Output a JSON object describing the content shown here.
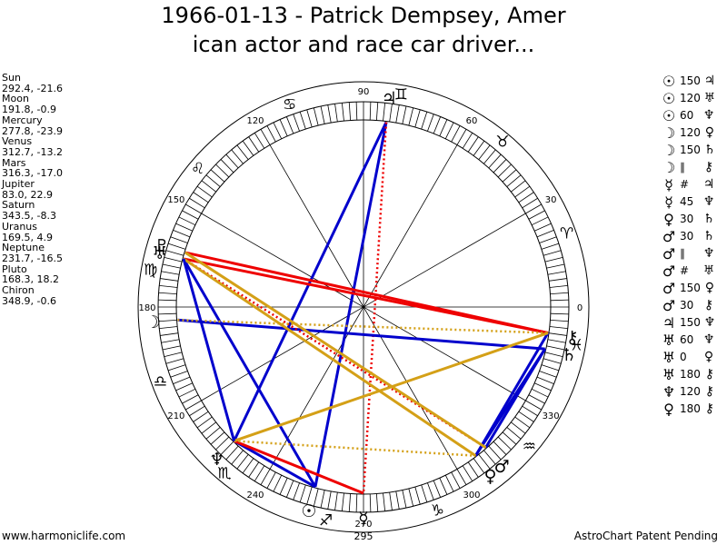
{
  "title_line1": "1966-01-13 - Patrick Dempsey, Amer",
  "title_line2": "ican actor and race car driver...",
  "positions": [
    {
      "name": "Sun",
      "value": "292.4, -21.6"
    },
    {
      "name": "Moon",
      "value": "191.8, -0.9"
    },
    {
      "name": "Mercury",
      "value": "277.8, -23.9"
    },
    {
      "name": "Venus",
      "value": "312.7, -13.2"
    },
    {
      "name": "Mars",
      "value": "316.3, -17.0"
    },
    {
      "name": "Jupiter",
      "value": "83.0, 22.9"
    },
    {
      "name": "Saturn",
      "value": "343.5, -8.3"
    },
    {
      "name": "Uranus",
      "value": "169.5, 4.9"
    },
    {
      "name": "Neptune",
      "value": "231.7, -16.5"
    },
    {
      "name": "Pluto",
      "value": "168.3, 18.2"
    },
    {
      "name": "Chiron",
      "value": "348.9, -0.6"
    }
  ],
  "aspects": [
    {
      "p1": "☉",
      "value": "150",
      "p2": "♃"
    },
    {
      "p1": "☉",
      "value": "120",
      "p2": "♅"
    },
    {
      "p1": "☉",
      "value": "60",
      "p2": "♆"
    },
    {
      "p1": "☽",
      "value": "120",
      "p2": "♀"
    },
    {
      "p1": "☽",
      "value": "150",
      "p2": "♄"
    },
    {
      "p1": "☽",
      "value": "∥",
      "p2": "⚷"
    },
    {
      "p1": "☿",
      "value": "#",
      "p2": "♃"
    },
    {
      "p1": "☿",
      "value": "45",
      "p2": "♆"
    },
    {
      "p1": "♀",
      "value": "30",
      "p2": "♄"
    },
    {
      "p1": "♂",
      "value": "30",
      "p2": "♄"
    },
    {
      "p1": "♂",
      "value": "∥",
      "p2": "♆"
    },
    {
      "p1": "♂",
      "value": "#",
      "p2": "♅"
    },
    {
      "p1": "♂",
      "value": "150",
      "p2": "♀"
    },
    {
      "p1": "♂",
      "value": "30",
      "p2": "⚷"
    },
    {
      "p1": "♃",
      "value": "150",
      "p2": "♆"
    },
    {
      "p1": "♅",
      "value": "60",
      "p2": "♆"
    },
    {
      "p1": "♅",
      "value": "0",
      "p2": "♀"
    },
    {
      "p1": "♅",
      "value": "180",
      "p2": "⚷"
    },
    {
      "p1": "♆",
      "value": "120",
      "p2": "⚷"
    },
    {
      "p1": "♀",
      "value": "180",
      "p2": "⚷"
    }
  ],
  "degree_labels": [
    "0",
    "30",
    "60",
    "90",
    "120",
    "150",
    "180",
    "210",
    "240",
    "270",
    "300",
    "330"
  ],
  "ascendant_label": "295",
  "zodiac_glyphs": [
    "♈",
    "♉",
    "♊",
    "♋",
    "♌",
    "♍",
    "♎",
    "♏",
    "♐",
    "♑",
    "♒",
    "♓"
  ],
  "planet_glyphs": {
    "sun": "☉",
    "moon": "☽",
    "mercury": "☿",
    "venus": "♀",
    "mars": "♂",
    "jupiter": "♃",
    "saturn": "♄",
    "uranus": "♅",
    "neptune": "♆",
    "pluto": "♇",
    "chiron": "⚷"
  },
  "colors": {
    "blue": "#0000cc",
    "red": "#ee0000",
    "gold": "#d4a017"
  },
  "footer_left": "www.harmoniclife.com",
  "footer_right": "AstroChart Patent Pending"
}
